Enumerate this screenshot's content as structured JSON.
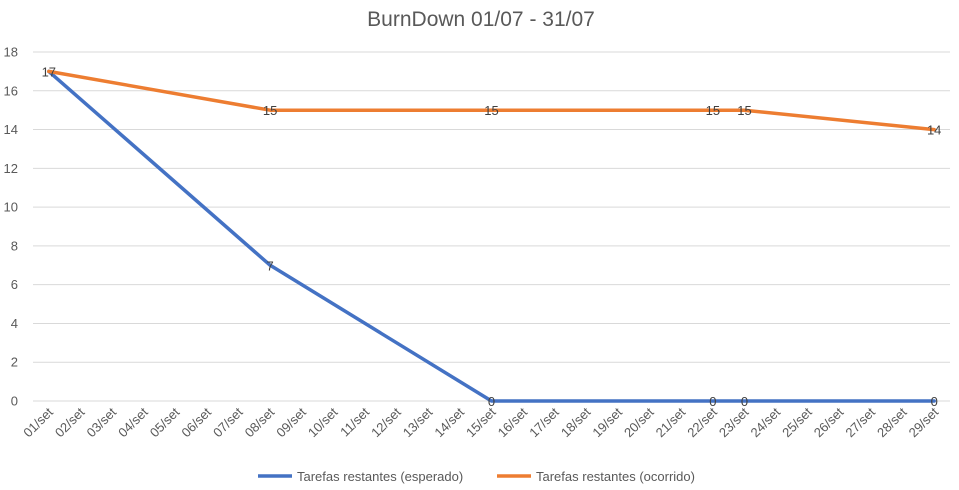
{
  "chart_data": {
    "type": "line",
    "title": "BurnDown 01/07 - 31/07",
    "xlabel": "",
    "ylabel": "",
    "ylim": [
      0,
      18
    ],
    "y_ticks": [
      "0",
      "2",
      "4",
      "6",
      "8",
      "10",
      "12",
      "14",
      "16",
      "18"
    ],
    "grid": true,
    "legend_position": "bottom",
    "categories": [
      "01/set",
      "02/set",
      "03/set",
      "04/set",
      "05/set",
      "06/set",
      "07/set",
      "08/set",
      "09/set",
      "10/set",
      "11/set",
      "12/set",
      "13/set",
      "14/set",
      "15/set",
      "16/set",
      "17/set",
      "18/set",
      "19/set",
      "20/set",
      "21/set",
      "22/set",
      "23/set",
      "24/set",
      "25/set",
      "26/set",
      "27/set",
      "28/set",
      "29/set"
    ],
    "series": [
      {
        "name": "Tarefas restantes (esperado)",
        "color": "#4472c4",
        "points": [
          {
            "x": "01/set",
            "y": 17
          },
          {
            "x": "08/set",
            "y": 7,
            "label": "7"
          },
          {
            "x": "15/set",
            "y": 0,
            "label": "0"
          },
          {
            "x": "22/set",
            "y": 0,
            "label": "0"
          },
          {
            "x": "23/set",
            "y": 0,
            "label": "0"
          },
          {
            "x": "29/set",
            "y": 0,
            "label": "0"
          }
        ]
      },
      {
        "name": "Tarefas restantes (ocorrido)",
        "color": "#ed7d31",
        "points": [
          {
            "x": "01/set",
            "y": 17,
            "label": "17"
          },
          {
            "x": "08/set",
            "y": 15,
            "label": "15"
          },
          {
            "x": "15/set",
            "y": 15,
            "label": "15"
          },
          {
            "x": "22/set",
            "y": 15,
            "label": "15"
          },
          {
            "x": "23/set",
            "y": 15,
            "label": "15"
          },
          {
            "x": "29/set",
            "y": 14,
            "label": "14"
          }
        ]
      }
    ]
  }
}
